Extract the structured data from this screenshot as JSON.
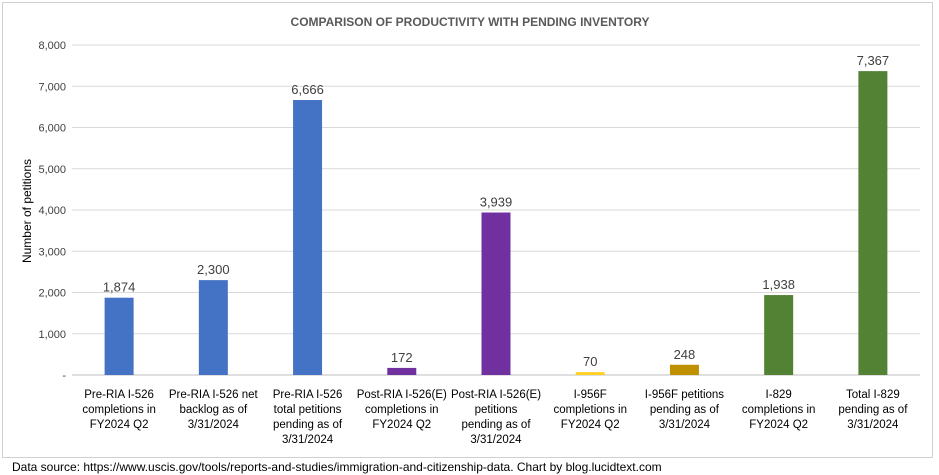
{
  "chart_data": {
    "type": "bar",
    "title": "COMPARISON OF  PRODUCTIVITY WITH PENDING INVENTORY",
    "xlabel": "",
    "ylabel": "Number of petitions",
    "ylim": [
      0,
      8000
    ],
    "yticks": [
      0,
      1000,
      2000,
      3000,
      4000,
      5000,
      6000,
      7000,
      8000
    ],
    "ytick_labels": [
      "-",
      "1,000",
      "2,000",
      "3,000",
      "4,000",
      "5,000",
      "6,000",
      "7,000",
      "8,000"
    ],
    "grid": true,
    "categories": [
      [
        "Pre-RIA I-526",
        "completions in",
        "FY2024 Q2"
      ],
      [
        "Pre-RIA I-526 net",
        "backlog as of",
        "3/31/2024"
      ],
      [
        "Pre-RIA I-526",
        "total petitions",
        "pending as of",
        "3/31/2024"
      ],
      [
        "Post-RIA I-526(E)",
        "completions in",
        "FY2024 Q2"
      ],
      [
        "Post-RIA I-526(E)",
        "petitions",
        "pending as of",
        "3/31/2024"
      ],
      [
        "I-956F",
        "completions in",
        "FY2024 Q2"
      ],
      [
        "I-956F petitions",
        "pending as of",
        "3/31/2024"
      ],
      [
        "I-829",
        "completions in",
        "FY2024 Q2"
      ],
      [
        "Total I-829",
        "pending as of",
        "3/31/2024"
      ]
    ],
    "values": [
      1874,
      2300,
      6666,
      172,
      3939,
      70,
      248,
      1938,
      7367
    ],
    "data_labels": [
      "1,874",
      "2,300",
      "6,666",
      "172",
      "3,939",
      "70",
      "248",
      "1,938",
      "7,367"
    ],
    "colors": [
      "#4472c4",
      "#4472c4",
      "#4472c4",
      "#7030a0",
      "#7030a0",
      "#ffd026",
      "#bf9000",
      "#548235",
      "#548235"
    ]
  },
  "source_note": "Data source: https://www.uscis.gov/tools/reports-and-studies/immigration-and-citizenship-data. Chart by blog.lucidtext.com"
}
